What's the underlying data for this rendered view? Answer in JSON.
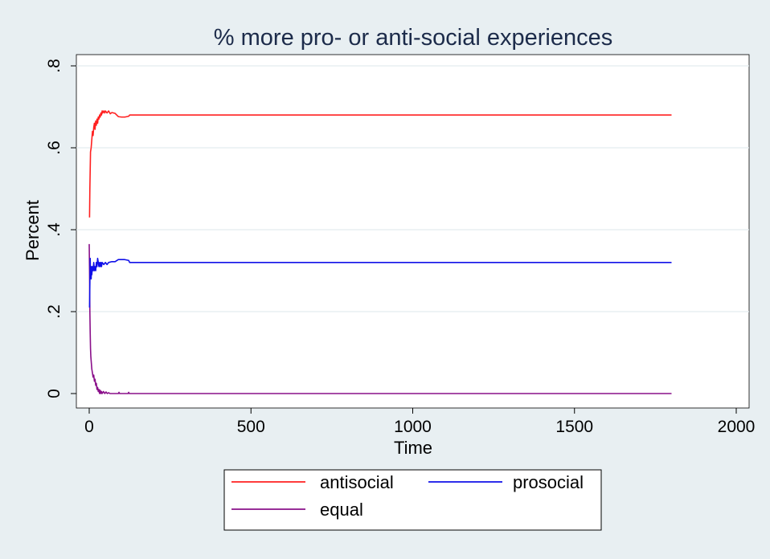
{
  "chart_data": {
    "type": "line",
    "title": "% more pro- or anti-social experiences",
    "xlabel": "Time",
    "ylabel": "Percent",
    "xlim": [
      0,
      2000
    ],
    "ylim": [
      0,
      0.8
    ],
    "xticks": [
      0,
      500,
      1000,
      1500,
      2000
    ],
    "xtick_labels": [
      "0",
      "500",
      "1000",
      "1500",
      "2000"
    ],
    "yticks": [
      0,
      0.2,
      0.4,
      0.6,
      0.8
    ],
    "ytick_labels": [
      "0",
      ".2",
      ".4",
      ".6",
      ".8"
    ],
    "grid": true,
    "legend_position": "bottom",
    "series": [
      {
        "name": "antisocial",
        "color": "#ff2020",
        "points": [
          [
            1,
            0.43
          ],
          [
            2,
            0.5
          ],
          [
            4,
            0.59
          ],
          [
            6,
            0.6
          ],
          [
            8,
            0.62
          ],
          [
            10,
            0.64
          ],
          [
            12,
            0.63
          ],
          [
            14,
            0.65
          ],
          [
            16,
            0.66
          ],
          [
            18,
            0.645
          ],
          [
            20,
            0.665
          ],
          [
            22,
            0.655
          ],
          [
            24,
            0.67
          ],
          [
            26,
            0.66
          ],
          [
            28,
            0.675
          ],
          [
            30,
            0.67
          ],
          [
            32,
            0.68
          ],
          [
            34,
            0.675
          ],
          [
            36,
            0.685
          ],
          [
            38,
            0.68
          ],
          [
            40,
            0.69
          ],
          [
            42,
            0.685
          ],
          [
            45,
            0.69
          ],
          [
            48,
            0.685
          ],
          [
            50,
            0.69
          ],
          [
            55,
            0.685
          ],
          [
            60,
            0.69
          ],
          [
            65,
            0.683
          ],
          [
            70,
            0.686
          ],
          [
            80,
            0.684
          ],
          [
            90,
            0.676
          ],
          [
            100,
            0.675
          ],
          [
            110,
            0.675
          ],
          [
            122,
            0.677
          ],
          [
            125,
            0.68
          ],
          [
            300,
            0.68
          ],
          [
            800,
            0.68
          ],
          [
            1300,
            0.68
          ],
          [
            1800,
            0.68
          ]
        ]
      },
      {
        "name": "prosocial",
        "color": "#1010e8",
        "points": [
          [
            1,
            0.21
          ],
          [
            2,
            0.27
          ],
          [
            3,
            0.33
          ],
          [
            4,
            0.29
          ],
          [
            5,
            0.3
          ],
          [
            6,
            0.28
          ],
          [
            7,
            0.31
          ],
          [
            8,
            0.29
          ],
          [
            10,
            0.31
          ],
          [
            12,
            0.3
          ],
          [
            14,
            0.32
          ],
          [
            16,
            0.3
          ],
          [
            18,
            0.31
          ],
          [
            20,
            0.3
          ],
          [
            22,
            0.32
          ],
          [
            24,
            0.31
          ],
          [
            26,
            0.33
          ],
          [
            28,
            0.32
          ],
          [
            30,
            0.31
          ],
          [
            32,
            0.32
          ],
          [
            34,
            0.31
          ],
          [
            36,
            0.32
          ],
          [
            38,
            0.31
          ],
          [
            40,
            0.32
          ],
          [
            45,
            0.315
          ],
          [
            50,
            0.32
          ],
          [
            55,
            0.315
          ],
          [
            60,
            0.32
          ],
          [
            70,
            0.322
          ],
          [
            80,
            0.322
          ],
          [
            90,
            0.327
          ],
          [
            100,
            0.327
          ],
          [
            110,
            0.327
          ],
          [
            122,
            0.325
          ],
          [
            125,
            0.32
          ],
          [
            300,
            0.32
          ],
          [
            800,
            0.32
          ],
          [
            1300,
            0.32
          ],
          [
            1800,
            0.32
          ]
        ]
      },
      {
        "name": "equal",
        "color": "#8a108a",
        "points": [
          [
            0,
            0.365
          ],
          [
            1,
            0.3
          ],
          [
            2,
            0.2
          ],
          [
            3,
            0.15
          ],
          [
            4,
            0.11
          ],
          [
            5,
            0.09
          ],
          [
            6,
            0.08
          ],
          [
            8,
            0.06
          ],
          [
            10,
            0.05
          ],
          [
            12,
            0.04
          ],
          [
            14,
            0.045
          ],
          [
            16,
            0.03
          ],
          [
            18,
            0.035
          ],
          [
            20,
            0.02
          ],
          [
            22,
            0.025
          ],
          [
            24,
            0.01
          ],
          [
            26,
            0.015
          ],
          [
            28,
            0.005
          ],
          [
            30,
            0.01
          ],
          [
            32,
            0.0
          ],
          [
            34,
            0.008
          ],
          [
            36,
            0.0
          ],
          [
            38,
            0.005
          ],
          [
            40,
            0.0
          ],
          [
            44,
            0.005
          ],
          [
            48,
            0.0
          ],
          [
            52,
            0.004
          ],
          [
            56,
            0.0
          ],
          [
            60,
            0.002
          ],
          [
            64,
            0.0
          ],
          [
            90,
            0.0
          ],
          [
            92,
            0.003
          ],
          [
            94,
            0.0
          ],
          [
            120,
            0.0
          ],
          [
            122,
            0.003
          ],
          [
            124,
            0.0
          ],
          [
            300,
            0.0
          ],
          [
            800,
            0.0
          ],
          [
            1300,
            0.0
          ],
          [
            1800,
            0.0
          ]
        ]
      }
    ]
  }
}
